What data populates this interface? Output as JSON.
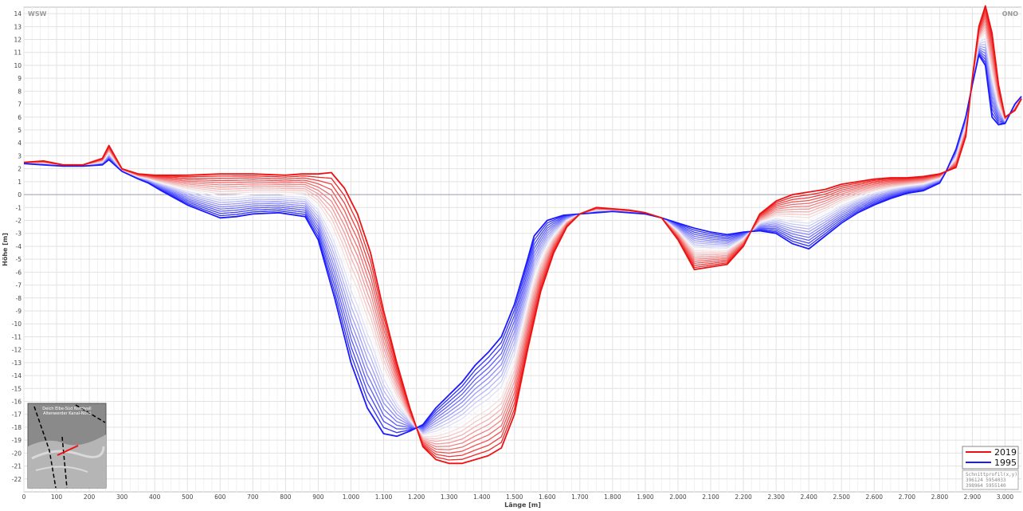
{
  "chart_data": {
    "type": "line",
    "xlabel": "Länge [m]",
    "ylabel": "Höhe [m]",
    "xlim": [
      0,
      3050
    ],
    "ylim": [
      -23,
      14.5
    ],
    "grid": true,
    "x_ticks": [
      0,
      100,
      200,
      300,
      400,
      500,
      600,
      700,
      800,
      900,
      1000,
      1100,
      1200,
      1300,
      1400,
      1500,
      1600,
      1700,
      1800,
      1900,
      2000,
      2100,
      2200,
      2300,
      2400,
      2500,
      2600,
      2700,
      2800,
      2900,
      3000
    ],
    "x_tick_labels": [
      "0",
      "100",
      "200",
      "300",
      "400",
      "500",
      "600",
      "700",
      "800",
      "900",
      "1.000",
      "1.100",
      "1.200",
      "1.300",
      "1.400",
      "1.500",
      "1.600",
      "1.700",
      "1.800",
      "1.900",
      "2.000",
      "2.100",
      "2.200",
      "2.300",
      "2.400",
      "2.500",
      "2.600",
      "2.700",
      "2.800",
      "2.900",
      "3.000"
    ],
    "y_ticks": [
      -22,
      -21,
      -20,
      -19,
      -18,
      -17,
      -16,
      -15,
      -14,
      -13,
      -12,
      -11,
      -10,
      -9,
      -8,
      -7,
      -6,
      -5,
      -4,
      -3,
      -2,
      -1,
      0,
      1,
      2,
      3,
      4,
      5,
      6,
      7,
      8,
      9,
      10,
      11,
      12,
      13,
      14
    ],
    "corner_left": "WSW",
    "corner_right": "ONO",
    "legend_position": "bottom-right",
    "colors": {
      "start": "#1a1aff",
      "end": "#ee1111",
      "midpoint": "#f5f5f5"
    },
    "legend": [
      {
        "name": "2019",
        "color": "#ee1111"
      },
      {
        "name": "1995",
        "color": "#1a1aff"
      }
    ],
    "info_box": {
      "title": "Schnittprofil(x,y)",
      "line1": "396124 5954033",
      "line2": "398964 5955140"
    },
    "inset_text": {
      "line1": "Deich Elbe-Süd Nordwall",
      "line2": "Altenwerder Kanal-Nord"
    },
    "series_order": [
      "1995",
      "2019"
    ],
    "series": [
      {
        "name": "1995",
        "x": [
          0,
          60,
          120,
          180,
          240,
          260,
          300,
          350,
          380,
          420,
          500,
          560,
          600,
          650,
          700,
          780,
          860,
          900,
          950,
          1000,
          1050,
          1100,
          1140,
          1180,
          1220,
          1260,
          1300,
          1340,
          1380,
          1420,
          1460,
          1500,
          1540,
          1560,
          1600,
          1650,
          1700,
          1750,
          1800,
          1850,
          1900,
          1950,
          2000,
          2050,
          2100,
          2150,
          2200,
          2250,
          2300,
          2350,
          2400,
          2450,
          2500,
          2550,
          2600,
          2650,
          2700,
          2750,
          2800,
          2820,
          2850,
          2880,
          2900,
          2920,
          2940,
          2960,
          2980,
          3000,
          3030,
          3050
        ],
        "y": [
          2.4,
          2.3,
          2.2,
          2.2,
          2.3,
          2.7,
          1.8,
          1.2,
          0.9,
          0.3,
          -0.8,
          -1.4,
          -1.8,
          -1.7,
          -1.5,
          -1.4,
          -1.7,
          -3.5,
          -8,
          -13,
          -16.5,
          -18.5,
          -18.7,
          -18.3,
          -17.8,
          -16.5,
          -15.5,
          -14.5,
          -13.2,
          -12.2,
          -11,
          -8.5,
          -5,
          -3.2,
          -2,
          -1.6,
          -1.5,
          -1.4,
          -1.3,
          -1.4,
          -1.5,
          -1.8,
          -2.2,
          -2.6,
          -2.9,
          -3.1,
          -2.9,
          -2.8,
          -3,
          -3.8,
          -4.2,
          -3.2,
          -2.2,
          -1.4,
          -0.8,
          -0.3,
          0.1,
          0.3,
          0.9,
          1.8,
          3.5,
          6,
          8.5,
          10.8,
          10,
          6,
          5.4,
          5.5,
          7,
          7.6
        ]
      },
      {
        "name": "2019",
        "x": [
          0,
          60,
          120,
          180,
          240,
          260,
          300,
          350,
          400,
          500,
          600,
          700,
          800,
          850,
          900,
          940,
          980,
          1020,
          1060,
          1100,
          1140,
          1180,
          1220,
          1260,
          1300,
          1340,
          1380,
          1420,
          1460,
          1500,
          1540,
          1580,
          1620,
          1660,
          1700,
          1750,
          1800,
          1850,
          1900,
          1950,
          2000,
          2050,
          2100,
          2150,
          2200,
          2250,
          2300,
          2350,
          2400,
          2450,
          2500,
          2550,
          2600,
          2650,
          2700,
          2750,
          2800,
          2850,
          2880,
          2900,
          2920,
          2940,
          2960,
          2980,
          3000,
          3030,
          3050
        ],
        "y": [
          2.5,
          2.6,
          2.3,
          2.3,
          2.8,
          3.8,
          2,
          1.6,
          1.5,
          1.5,
          1.6,
          1.6,
          1.5,
          1.6,
          1.6,
          1.7,
          0.5,
          -1.5,
          -4.5,
          -9,
          -13,
          -16.5,
          -19.5,
          -20.5,
          -20.8,
          -20.8,
          -20.5,
          -20.2,
          -19.6,
          -17,
          -12,
          -7.5,
          -4.5,
          -2.5,
          -1.5,
          -1,
          -1.1,
          -1.2,
          -1.4,
          -1.8,
          -3.5,
          -5.8,
          -5.6,
          -5.4,
          -4,
          -1.5,
          -0.5,
          0,
          0.2,
          0.4,
          0.8,
          1,
          1.2,
          1.3,
          1.3,
          1.4,
          1.6,
          2.1,
          4.5,
          9,
          13,
          14.6,
          12.5,
          8.5,
          6,
          6.5,
          7.4
        ]
      }
    ]
  }
}
